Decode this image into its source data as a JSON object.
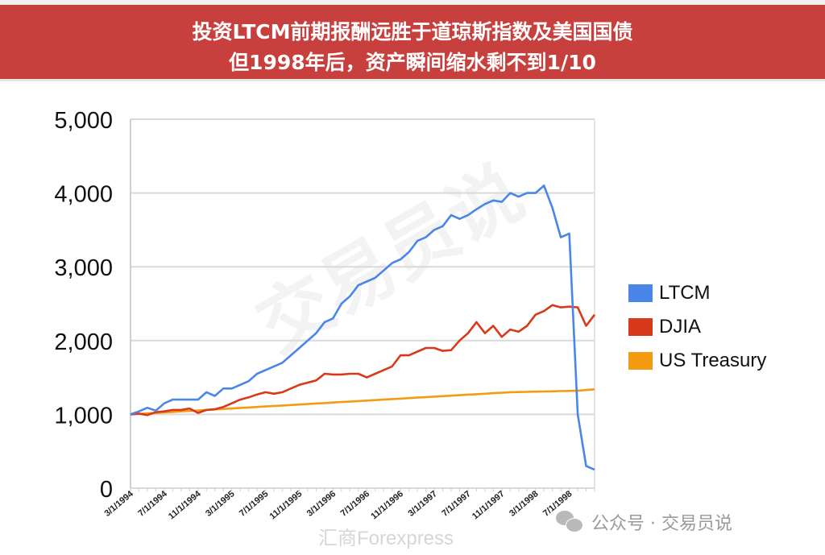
{
  "banner": {
    "line1": "投资LTCM前期报酬远胜于道琼斯指数及美国国债",
    "line2": "但1998年后，资产瞬间缩水剩不到1/10",
    "background_color": "#c8403e"
  },
  "legend": {
    "items": [
      {
        "label": "LTCM",
        "color": "#4a86e8"
      },
      {
        "label": "DJIA",
        "color": "#d8391a"
      },
      {
        "label": "US Treasury",
        "color": "#f39c12"
      }
    ]
  },
  "footer": {
    "wechat_label": "公众号 · 交易员说",
    "weibo_label": "汇商Forexpress"
  },
  "watermark": "交易员说",
  "chart_data": {
    "type": "line",
    "title": "投资LTCM前期报酬远胜于道琼斯指数及美国国债 / 但1998年后，资产瞬间缩水剩不到1/10",
    "xlabel": "",
    "ylabel": "",
    "ylim": [
      0,
      5000
    ],
    "yticks": [
      0,
      1000,
      2000,
      3000,
      4000,
      5000
    ],
    "ytick_labels": [
      "0",
      "1,000",
      "2,000",
      "3,000",
      "4,000",
      "5,000"
    ],
    "xtick_labels": [
      "3/1/1994",
      "7/1/1994",
      "11/1/1994",
      "3/1/1995",
      "7/1/1995",
      "11/1/1995",
      "3/1/1996",
      "7/1/1996",
      "11/1/1996",
      "3/1/1997",
      "7/1/1997",
      "11/1/1997",
      "3/1/1998",
      "7/1/1998"
    ],
    "grid": true,
    "legend_position": "right",
    "x_start": "3/1994",
    "x_step": "1 month",
    "series": [
      {
        "name": "LTCM",
        "color": "#4a86e8",
        "values": [
          1000,
          1040,
          1090,
          1050,
          1150,
          1200,
          1200,
          1200,
          1200,
          1300,
          1250,
          1350,
          1350,
          1400,
          1450,
          1550,
          1600,
          1650,
          1700,
          1800,
          1900,
          2000,
          2100,
          2250,
          2300,
          2500,
          2600,
          2750,
          2800,
          2850,
          2950,
          3050,
          3100,
          3200,
          3350,
          3400,
          3500,
          3550,
          3700,
          3650,
          3700,
          3780,
          3850,
          3900,
          3880,
          4000,
          3950,
          4000,
          4000,
          4100,
          3800,
          3400,
          3450,
          1000,
          300,
          250
        ]
      },
      {
        "name": "DJIA",
        "color": "#d8391a",
        "values": [
          1000,
          1010,
          990,
          1030,
          1040,
          1060,
          1060,
          1080,
          1020,
          1060,
          1070,
          1100,
          1150,
          1200,
          1230,
          1270,
          1300,
          1280,
          1300,
          1350,
          1400,
          1430,
          1460,
          1550,
          1540,
          1540,
          1550,
          1550,
          1500,
          1550,
          1600,
          1650,
          1800,
          1800,
          1850,
          1900,
          1900,
          1860,
          1870,
          2000,
          2100,
          2250,
          2100,
          2200,
          2050,
          2150,
          2120,
          2200,
          2350,
          2400,
          2480,
          2450,
          2460,
          2450,
          2200,
          2350
        ]
      },
      {
        "name": "US Treasury",
        "color": "#f39c12",
        "values": [
          1000,
          1007,
          1013,
          1020,
          1027,
          1033,
          1040,
          1047,
          1053,
          1060,
          1067,
          1073,
          1080,
          1087,
          1093,
          1100,
          1107,
          1113,
          1120,
          1127,
          1133,
          1140,
          1147,
          1153,
          1160,
          1167,
          1173,
          1180,
          1187,
          1193,
          1200,
          1207,
          1213,
          1220,
          1227,
          1233,
          1240,
          1247,
          1253,
          1260,
          1267,
          1273,
          1280,
          1287,
          1293,
          1300,
          1302,
          1305,
          1308,
          1310,
          1312,
          1315,
          1318,
          1320,
          1330,
          1340
        ]
      }
    ]
  }
}
